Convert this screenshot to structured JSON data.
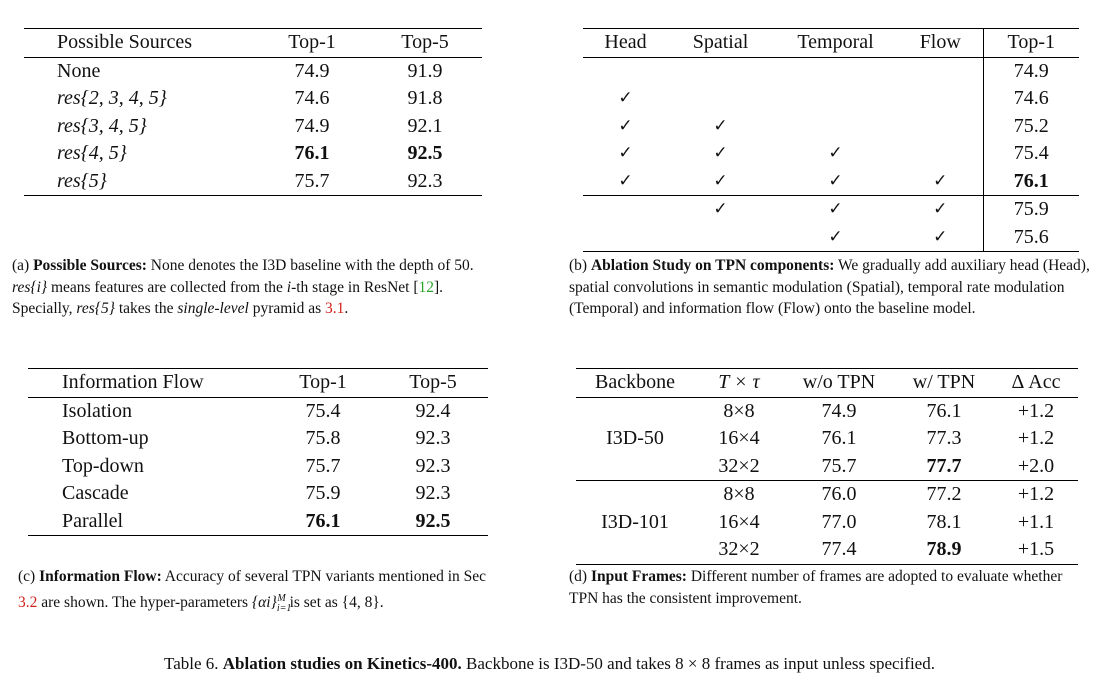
{
  "table_a": {
    "headers": [
      "Possible Sources",
      "Top-1",
      "Top-5"
    ],
    "rows": [
      [
        "None",
        "74.9",
        "91.9"
      ],
      [
        "res{2, 3, 4, 5}",
        "74.6",
        "91.8"
      ],
      [
        "res{3, 4, 5}",
        "74.9",
        "92.1"
      ],
      [
        "res{4, 5}",
        "76.1",
        "92.5"
      ],
      [
        "res{5}",
        "75.7",
        "92.3"
      ]
    ],
    "caption": {
      "label": "(a)",
      "title": "Possible Sources:",
      "text1": " None denotes the I3D baseline with the depth of 50. ",
      "res_i": "res{i}",
      "text2": " means features are collected from the ",
      "i_th": "i",
      "text3": "-th stage in ResNet [",
      "cite": "12",
      "text4": "]. Specially, ",
      "res5": "res{5}",
      "text5": " takes the ",
      "single": "single-level",
      "text6": " pyramid as ",
      "ref": "3.1",
      "text7": "."
    }
  },
  "table_b": {
    "headers": [
      "Head",
      "Spatial",
      "Temporal",
      "Flow",
      "Top-1"
    ],
    "check_symbol": "✓",
    "rows": [
      [
        false,
        false,
        false,
        false,
        "74.9"
      ],
      [
        true,
        false,
        false,
        false,
        "74.6"
      ],
      [
        true,
        true,
        false,
        false,
        "75.2"
      ],
      [
        true,
        true,
        true,
        false,
        "75.4"
      ],
      [
        true,
        true,
        true,
        true,
        "76.1"
      ],
      [
        false,
        true,
        true,
        true,
        "75.9"
      ],
      [
        false,
        false,
        true,
        true,
        "75.6"
      ]
    ],
    "caption": {
      "label": "(b)",
      "title": "Ablation Study on TPN components:",
      "text": " We gradually add auxiliary head (Head), spatial convolutions in semantic modulation (Spatial), temporal rate modulation (Temporal) and information flow (Flow) onto the baseline model."
    }
  },
  "table_c": {
    "headers": [
      "Information Flow",
      "Top-1",
      "Top-5"
    ],
    "rows": [
      [
        "Isolation",
        "75.4",
        "92.4"
      ],
      [
        "Bottom-up",
        "75.8",
        "92.3"
      ],
      [
        "Top-down",
        "75.7",
        "92.3"
      ],
      [
        "Cascade",
        "75.9",
        "92.3"
      ],
      [
        "Parallel",
        "76.1",
        "92.5"
      ]
    ],
    "caption": {
      "label": "(c)",
      "title": "Information Flow:",
      "text1": " Accuracy of several TPN variants mentioned in Sec ",
      "ref": "3.2",
      "text2": " are shown. The hyper-parameters ",
      "math": "{αi}",
      "text3": " is set as ",
      "set": "{4, 8}",
      "text4": "."
    }
  },
  "table_d": {
    "headers": [
      "Backbone",
      "T × τ",
      "w/o TPN",
      "w/ TPN",
      "Δ Acc"
    ],
    "groups": [
      {
        "backbone": "I3D-50",
        "rows": [
          [
            "8×8",
            "74.9",
            "76.1",
            "+1.2"
          ],
          [
            "16×4",
            "76.1",
            "77.3",
            "+1.2"
          ],
          [
            "32×2",
            "75.7",
            "77.7",
            "+2.0"
          ]
        ]
      },
      {
        "backbone": "I3D-101",
        "rows": [
          [
            "8×8",
            "76.0",
            "77.2",
            "+1.2"
          ],
          [
            "16×4",
            "77.0",
            "78.1",
            "+1.1"
          ],
          [
            "32×2",
            "77.4",
            "78.9",
            "+1.5"
          ]
        ]
      }
    ],
    "caption": {
      "label": "(d)",
      "title": "Input Frames:",
      "text": " Different number of frames are adopted to evaluate whether TPN has the consistent improvement."
    }
  },
  "main_caption": {
    "label": "Table 6.",
    "title": "Ablation studies on Kinetics-400.",
    "text": " Backbone is I3D-50 and takes 8 × 8 frames as input unless specified."
  }
}
